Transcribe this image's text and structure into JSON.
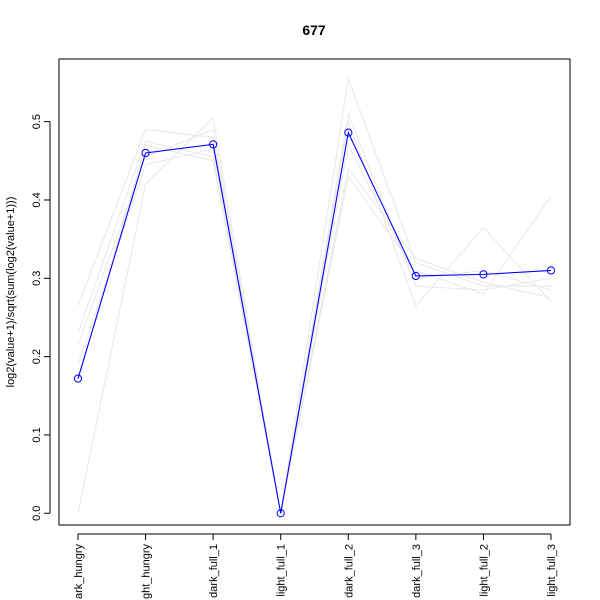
{
  "chart_data": {
    "type": "line",
    "title": "677",
    "xlabel": "",
    "ylabel": "log2(value+1)/sqrt(sum(log2(value+1)))",
    "categories": [
      "dark_hungry",
      "light_hungry",
      "dark_full_1",
      "light_full_1",
      "dark_full_2",
      "dark_full_3",
      "light_full_2",
      "light_full_3"
    ],
    "tick_labels_shown": [
      "ark_hungry",
      "ght_hungry",
      "dark_full_1",
      "light_full_1",
      "dark_full_2",
      "dark_full_3",
      "light_full_2",
      "light_full_3"
    ],
    "ylim": [
      -0.015,
      0.58
    ],
    "yticks": [
      0.0,
      0.1,
      0.2,
      0.3,
      0.4,
      0.5
    ],
    "ytick_labels": [
      "0.0",
      "0.1",
      "0.2",
      "0.3",
      "0.4",
      "0.5"
    ],
    "grid": false,
    "legend": "none",
    "series": [
      {
        "values": [
          0.172,
          0.46,
          0.471,
          0.0,
          0.486,
          0.303,
          0.305,
          0.31
        ],
        "color": "#0000ff",
        "markers": "open-circle",
        "highlight": true
      },
      {
        "values": [
          0.265,
          0.49,
          0.48,
          0.0,
          0.43,
          0.31,
          0.28,
          0.405
        ],
        "color": "#e8e8e8",
        "markers": "none"
      },
      {
        "values": [
          0.23,
          0.475,
          0.455,
          0.0,
          0.5,
          0.265,
          0.365,
          0.27
        ],
        "color": "#e8e8e8",
        "markers": "none"
      },
      {
        "values": [
          0.0,
          0.42,
          0.505,
          0.0,
          0.555,
          0.32,
          0.29,
          0.29
        ],
        "color": "#e8e8e8",
        "markers": "none"
      },
      {
        "values": [
          0.19,
          0.445,
          0.465,
          0.0,
          0.44,
          0.325,
          0.295,
          0.275
        ],
        "color": "#e8e8e8",
        "markers": "none"
      },
      {
        "values": [
          0.17,
          0.47,
          0.45,
          0.0,
          0.51,
          0.29,
          0.285,
          0.3
        ],
        "color": "#e8e8e8",
        "markers": "none"
      },
      {
        "values": [
          0.215,
          0.455,
          0.49,
          0.0,
          0.47,
          0.3,
          0.31,
          0.285
        ],
        "color": "#e8e8e8",
        "markers": "none"
      }
    ]
  }
}
